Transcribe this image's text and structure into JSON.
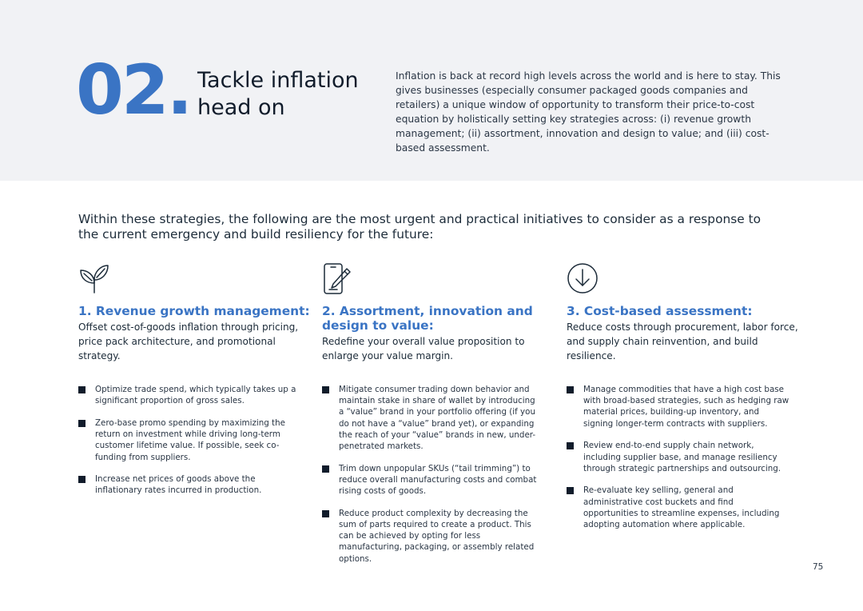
{
  "hero": {
    "number": "02.",
    "title": "Tackle inflation head on",
    "description": "Inflation is back at record high levels across the world and is here to stay. This gives businesses (especially consumer packaged goods companies and retailers) a unique window of opportunity to transform their price-to-cost equation by holistically setting key strategies across: (i) revenue growth management; (ii) assortment, innovation and design to value; and (iii) cost-based assessment."
  },
  "intro": "Within these strategies, the following are the most urgent and practical initiatives to consider as a response to the current emergency and build resiliency for the future:",
  "columns": [
    {
      "icon": "plant-sprout-icon",
      "title": "1. Revenue growth management:",
      "subtitle": "Offset cost-of-goods inflation through pricing, price pack architecture, and promotional strategy.",
      "bullets": [
        "Optimize trade spend, which typically takes up a significant proportion of gross sales.",
        "Zero-base promo spending by maximizing the return on investment while driving long-term customer lifetime value. If possible, seek co-funding from suppliers.",
        "Increase net prices of goods above the inflationary rates incurred in production."
      ]
    },
    {
      "icon": "phone-pencil-icon",
      "title": "2. Assortment, innovation and design to value:",
      "subtitle": "Redefine your overall value proposition to enlarge your value margin.",
      "bullets": [
        "Mitigate consumer trading down behavior and maintain stake in share of wallet by introducing a “value” brand in your portfolio offering (if you do not have a “value” brand yet), or expanding the reach of your “value” brands in new, under-penetrated markets.",
        "Trim down unpopular SKUs (“tail trimming”) to reduce overall manufacturing costs and combat rising costs of goods.",
        "Reduce product complexity by decreasing the sum of parts required to create a product. This can be achieved by opting for less manufacturing, packaging, or assembly related options."
      ]
    },
    {
      "icon": "arrow-down-circle-icon",
      "title": "3. Cost-based assessment:",
      "subtitle": "Reduce costs through procurement, labor force, and supply chain reinvention, and build resilience.",
      "bullets": [
        "Manage commodities that have a high cost base with broad-based strategies, such as hedging raw material prices, building-up inventory, and signing longer-term contracts with suppliers.",
        "Review end-to-end supply chain network, including supplier base, and manage resiliency through strategic partnerships and outsourcing.",
        "Re-evaluate key selling, general and administrative cost buckets and find opportunities to streamline expenses, including adopting automation where applicable."
      ]
    }
  ],
  "page_number": "75",
  "colors": {
    "accent": "#3a74c4",
    "hero_bg": "#f1f2f5",
    "text": "#1c2b39"
  }
}
